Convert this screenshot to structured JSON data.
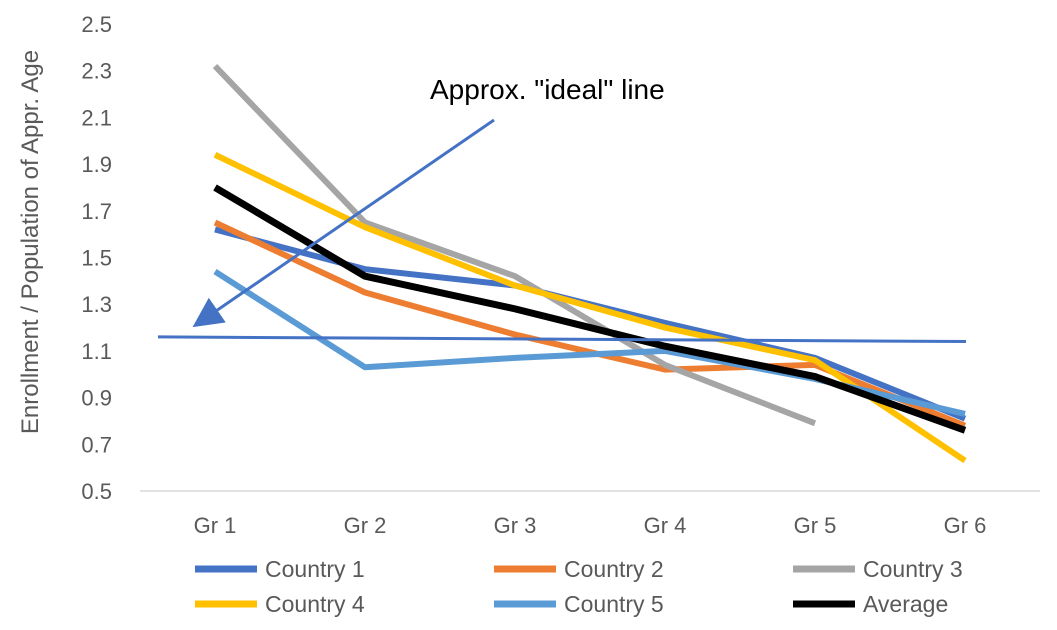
{
  "chart_data": {
    "type": "line",
    "title": "",
    "xlabel": "",
    "ylabel": "Enrollment / Population of Appr. Age",
    "categories": [
      "Gr 1",
      "Gr 2",
      "Gr 3",
      "Gr 4",
      "Gr 5",
      "Gr 6"
    ],
    "ylim": [
      0.5,
      2.5
    ],
    "yticks": [
      "0.5",
      "0.7",
      "0.9",
      "1.1",
      "1.3",
      "1.5",
      "1.7",
      "1.9",
      "2.1",
      "2.3",
      "2.5"
    ],
    "grid": false,
    "legend_position": "bottom",
    "series": [
      {
        "name": "Country 1",
        "color": "#4472C4",
        "values": [
          1.62,
          1.45,
          1.38,
          1.22,
          1.07,
          0.81
        ]
      },
      {
        "name": "Country 2",
        "color": "#ED7D31",
        "values": [
          1.65,
          1.35,
          1.17,
          1.02,
          1.04,
          0.78
        ]
      },
      {
        "name": "Country 3",
        "color": "#A5A5A5",
        "values": [
          2.32,
          1.65,
          1.42,
          1.04,
          0.79,
          null
        ]
      },
      {
        "name": "Country 4",
        "color": "#FFC000",
        "values": [
          1.94,
          1.63,
          1.38,
          1.2,
          1.06,
          0.63
        ]
      },
      {
        "name": "Country 5",
        "color": "#5B9BD5",
        "values": [
          1.44,
          1.03,
          1.07,
          1.1,
          0.98,
          0.83
        ]
      },
      {
        "name": "Average",
        "color": "#000000",
        "values": [
          1.8,
          1.42,
          1.28,
          1.12,
          0.99,
          0.76
        ]
      }
    ],
    "reference_line": {
      "value_start": 1.16,
      "value_end": 1.14,
      "color": "#4472C4"
    },
    "annotation": {
      "text": "Approx. \"ideal\" line",
      "arrow_color": "#4472C4"
    }
  }
}
